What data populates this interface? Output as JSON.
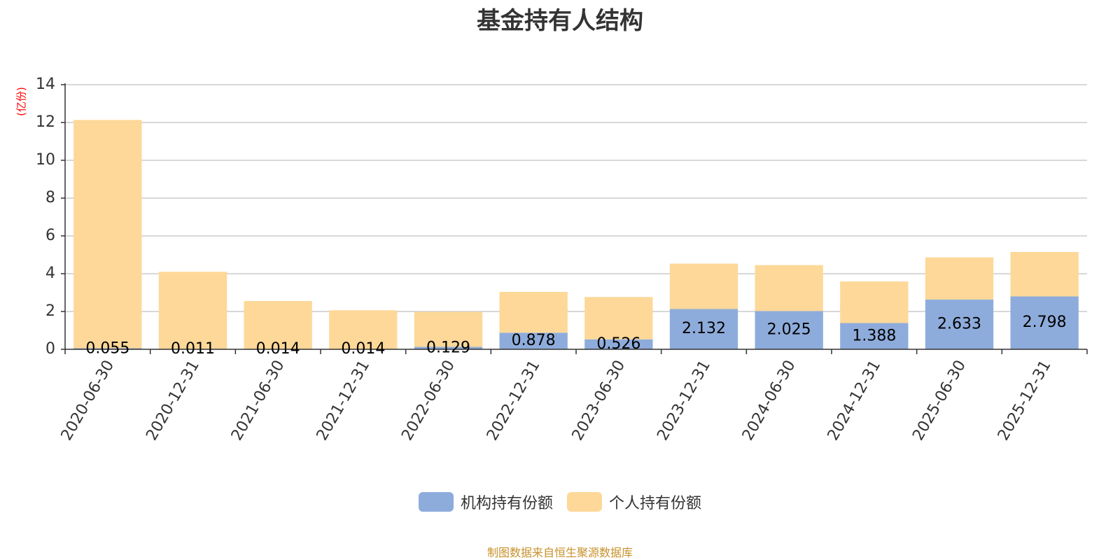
{
  "chart_data": {
    "type": "bar",
    "stacked": true,
    "title": "基金持有人结构",
    "ylabel": "(亿份)",
    "xlabel": "",
    "ylim": [
      0,
      14
    ],
    "yticks": [
      0,
      2,
      4,
      6,
      8,
      10,
      12,
      14
    ],
    "grid": true,
    "legend_position": "bottom",
    "categories": [
      "2020-06-30",
      "2020-12-31",
      "2021-06-30",
      "2021-12-31",
      "2022-06-30",
      "2022-12-31",
      "2023-06-30",
      "2023-12-31",
      "2024-06-30",
      "2024-12-31",
      "2025-06-30",
      "2025-12-31"
    ],
    "series": [
      {
        "name": "机构持有份额",
        "color": "#8eacdb",
        "values": [
          0.055,
          0.011,
          0.014,
          0.014,
          0.129,
          0.878,
          0.526,
          2.132,
          2.025,
          1.388,
          2.633,
          2.798
        ],
        "labels": [
          "0.055",
          "0.011",
          "0.014",
          "0.014",
          "0.129",
          "0.878",
          "0.526",
          "2.132",
          "2.025",
          "1.388",
          "2.633",
          "2.798"
        ]
      },
      {
        "name": "个人持有份额",
        "color": "#fdd898",
        "values": [
          12.08,
          4.09,
          2.54,
          2.05,
          1.85,
          2.16,
          2.24,
          2.4,
          2.43,
          2.2,
          2.23,
          2.35
        ]
      }
    ]
  },
  "footer": {
    "source": "制图数据来自恒生聚源数据库"
  }
}
